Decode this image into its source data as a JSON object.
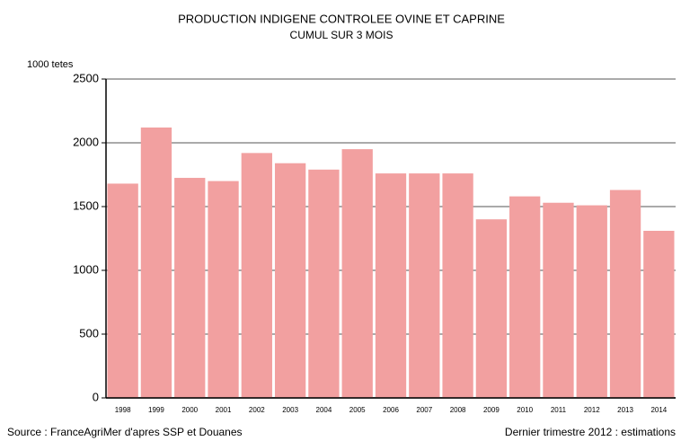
{
  "chart_data": {
    "type": "bar",
    "title": "PRODUCTION INDIGENE CONTROLEE OVINE ET CAPRINE",
    "subtitle": "CUMUL SUR 3 MOIS",
    "y_label": "1000 tetes",
    "source": "Source : FranceAgriMer d'apres SSP et Douanes",
    "note": "Dernier trimestre 2012 : estimations",
    "categories": [
      "1998",
      "1999",
      "2000",
      "2001",
      "2002",
      "2003",
      "2004",
      "2005",
      "2006",
      "2007",
      "2008",
      "2009",
      "2010",
      "2011",
      "2012",
      "2013",
      "2014"
    ],
    "values": [
      1680,
      2120,
      1725,
      1700,
      1920,
      1840,
      1790,
      1950,
      1760,
      1760,
      1760,
      1400,
      1580,
      1530,
      1510,
      1630,
      1310
    ],
    "color": "#f2a0a0",
    "ylim": [
      0,
      2500
    ],
    "yticks": [
      0,
      500,
      1000,
      1500,
      2000,
      2500
    ],
    "grid": true
  }
}
